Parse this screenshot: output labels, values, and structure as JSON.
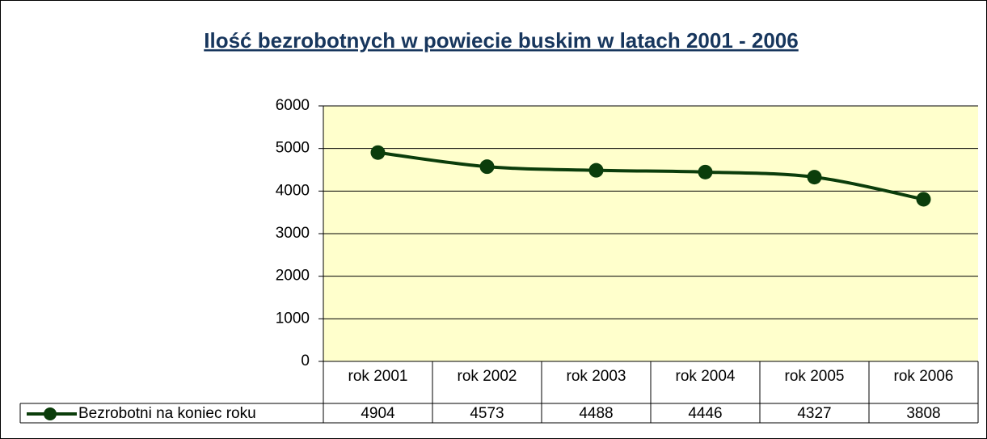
{
  "chart_data": {
    "type": "line",
    "title": "Ilość bezrobotnych w powiecie buskim w  latach 2001 - 2006",
    "categories": [
      "rok 2001",
      "rok 2002",
      "rok 2003",
      "rok 2004",
      "rok 2005",
      "rok 2006"
    ],
    "series": [
      {
        "name": "Bezrobotni na koniec roku",
        "color": "#0b3d0b",
        "values": [
          4904,
          4573,
          4488,
          4446,
          4327,
          3808
        ]
      }
    ],
    "ylim": [
      0,
      6000
    ],
    "yticks": [
      0,
      1000,
      2000,
      3000,
      4000,
      5000,
      6000
    ],
    "grid": true,
    "smooth": true,
    "plot_background": "#ffffcc",
    "data_table": true
  }
}
